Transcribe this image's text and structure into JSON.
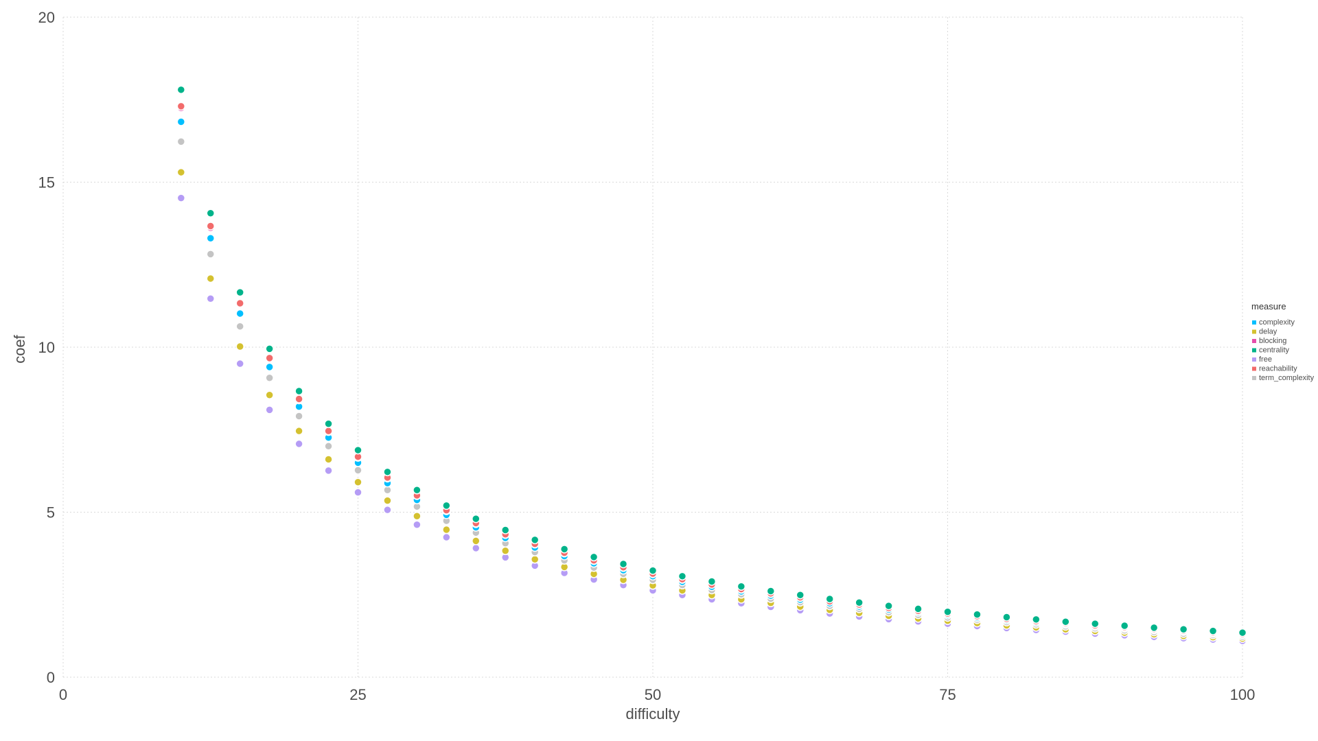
{
  "chart_data": {
    "type": "scatter",
    "xlabel": "difficulty",
    "ylabel": "coef",
    "xlim": [
      0,
      100
    ],
    "ylim": [
      0,
      20
    ],
    "x_ticks": [
      "0",
      "25",
      "50",
      "75",
      "100"
    ],
    "y_ticks": [
      "0",
      "5",
      "10",
      "15",
      "20"
    ],
    "grid": true,
    "legend": {
      "title": "measure",
      "placement": "right"
    },
    "x": [
      10,
      12.5,
      15,
      17.5,
      20,
      22.5,
      25,
      27.5,
      30,
      32.5,
      35,
      37.5,
      40,
      42.5,
      45,
      47.5,
      50,
      52.5,
      55,
      57.5,
      60,
      62.5,
      65,
      67.5,
      70,
      72.5,
      75,
      77.5,
      80,
      82.5,
      85,
      87.5,
      90,
      92.5,
      95,
      97.5,
      100
    ],
    "series": [
      {
        "name": "complexity",
        "color": "#00BFFF",
        "values": [
          16.83,
          13.3,
          11.02,
          9.4,
          8.2,
          7.26,
          6.5,
          5.88,
          5.37,
          4.92,
          4.54,
          4.22,
          3.93,
          3.67,
          3.45,
          3.24,
          3.06,
          2.89,
          2.74,
          2.6,
          2.47,
          2.35,
          2.24,
          2.14,
          2.05,
          1.96,
          1.88,
          1.8,
          1.73,
          1.66,
          1.6,
          1.54,
          1.48,
          1.43,
          1.38,
          1.33,
          1.28
        ]
      },
      {
        "name": "delay",
        "color": "#D4C130",
        "values": [
          15.3,
          12.08,
          10.02,
          8.55,
          7.46,
          6.6,
          5.91,
          5.35,
          4.88,
          4.47,
          4.13,
          3.83,
          3.57,
          3.34,
          3.13,
          2.95,
          2.78,
          2.63,
          2.49,
          2.36,
          2.25,
          2.14,
          2.04,
          1.95,
          1.86,
          1.78,
          1.71,
          1.64,
          1.57,
          1.51,
          1.45,
          1.4,
          1.35,
          1.3,
          1.25,
          1.21,
          1.17
        ]
      },
      {
        "name": "blocking",
        "color": "#E64EAA",
        "values": [
          17.25,
          13.62,
          11.3,
          9.64,
          8.4,
          7.44,
          6.66,
          6.03,
          5.5,
          5.04,
          4.65,
          4.32,
          4.03,
          3.76,
          3.53,
          3.32,
          3.13,
          2.96,
          2.81,
          2.66,
          2.53,
          2.41,
          2.3,
          2.19,
          2.1,
          2.0,
          1.92,
          1.84,
          1.77,
          1.7,
          1.63,
          1.57,
          1.51,
          1.46,
          1.4,
          1.35,
          1.31
        ]
      },
      {
        "name": "centrality",
        "color": "#00B38A",
        "values": [
          17.8,
          14.06,
          11.66,
          9.95,
          8.67,
          7.68,
          6.88,
          6.22,
          5.67,
          5.2,
          4.8,
          4.46,
          4.16,
          3.88,
          3.64,
          3.43,
          3.23,
          3.06,
          2.9,
          2.75,
          2.61,
          2.49,
          2.37,
          2.26,
          2.16,
          2.07,
          1.98,
          1.9,
          1.82,
          1.75,
          1.68,
          1.62,
          1.56,
          1.5,
          1.45,
          1.4,
          1.35
        ]
      },
      {
        "name": "free",
        "color": "#B59CF5",
        "values": [
          14.52,
          11.47,
          9.5,
          8.1,
          7.07,
          6.26,
          5.6,
          5.07,
          4.62,
          4.24,
          3.91,
          3.63,
          3.38,
          3.16,
          2.96,
          2.79,
          2.63,
          2.49,
          2.36,
          2.24,
          2.13,
          2.03,
          1.93,
          1.84,
          1.76,
          1.69,
          1.62,
          1.55,
          1.49,
          1.43,
          1.38,
          1.32,
          1.27,
          1.22,
          1.18,
          1.14,
          1.1
        ]
      },
      {
        "name": "reachability",
        "color": "#F26B6B",
        "values": [
          17.3,
          13.67,
          11.33,
          9.67,
          8.43,
          7.46,
          6.68,
          6.05,
          5.51,
          5.06,
          4.67,
          4.33,
          4.04,
          3.77,
          3.54,
          3.33,
          3.14,
          2.97,
          2.81,
          2.67,
          2.54,
          2.42,
          2.3,
          2.2,
          2.1,
          2.01,
          1.93,
          1.85,
          1.77,
          1.7,
          1.64,
          1.57,
          1.52,
          1.46,
          1.41,
          1.36,
          1.31
        ]
      },
      {
        "name": "term_complexity",
        "color": "#C4C4C4",
        "values": [
          16.23,
          12.82,
          10.63,
          9.07,
          7.91,
          7.0,
          6.27,
          5.67,
          5.17,
          4.74,
          4.38,
          4.06,
          3.79,
          3.54,
          3.32,
          3.13,
          2.95,
          2.79,
          2.64,
          2.51,
          2.38,
          2.27,
          2.16,
          2.07,
          1.97,
          1.89,
          1.81,
          1.74,
          1.67,
          1.6,
          1.54,
          1.48,
          1.42,
          1.37,
          1.32,
          1.28,
          1.23
        ]
      }
    ]
  }
}
